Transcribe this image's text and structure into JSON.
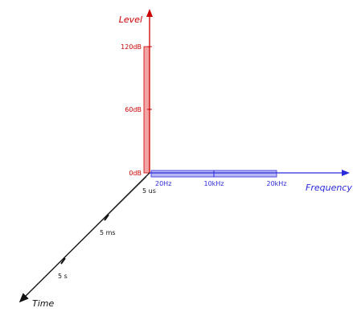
{
  "colors": {
    "level": "#cc0000",
    "level_fill": "#f2a4a4",
    "frequency": "#2a2adc",
    "frequency_fill": "#b8b8f4",
    "time": "#111111"
  },
  "axes": {
    "level": {
      "title": "Level",
      "ticks": [
        "120dB",
        "60dB",
        "0dB"
      ]
    },
    "frequency": {
      "title": "Frequency",
      "ticks": [
        "20Hz",
        "10kHz",
        "20kHz"
      ]
    },
    "time": {
      "title": "Time",
      "ticks": [
        "5 us",
        "5 ms",
        "5 s"
      ]
    }
  }
}
